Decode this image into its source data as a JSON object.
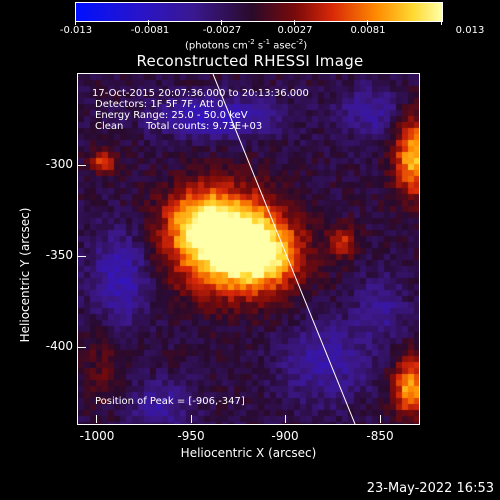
{
  "colorbar": {
    "ticks": [
      "-0.013",
      "-0.0081",
      "-0.0027",
      "0.0027",
      "0.0081",
      "0.013"
    ],
    "units_prefix": "(photons cm",
    "units_exp1": "-2",
    "units_mid": " s",
    "units_exp2": "-1",
    "units_mid2": " asec",
    "units_exp3": "-2",
    "units_suffix": ")"
  },
  "title": "Reconstructed RHESSI Image",
  "info": {
    "time_range": "17-Oct-2015 20:07:36.000 to 20:13:36.000",
    "detectors": "Detectors: 1F 5F 7F, Att 0",
    "energy": "Energy Range: 25.0 - 50.0 keV",
    "clean": "Clean",
    "counts": "Total counts: 9.73E+03",
    "peak": "Position of Peak = [-906,-347]"
  },
  "axes": {
    "xlabel": "Heliocentric X (arcsec)",
    "ylabel": "Heliocentric Y (arcsec)",
    "xticks": [
      "-1000",
      "-950",
      "-900",
      "-850"
    ],
    "yticks": [
      "-300",
      "-350",
      "-400"
    ]
  },
  "footer": "23-May-2022 16:53",
  "chart_data": {
    "type": "heatmap",
    "title": "Reconstructed RHESSI Image",
    "xlabel": "Heliocentric X (arcsec)",
    "ylabel": "Heliocentric Y (arcsec)",
    "xlim": [
      -1010,
      -817
    ],
    "ylim": [
      -445,
      -258
    ],
    "color_range": [
      -0.013,
      0.013
    ],
    "peak": [
      -906,
      -347
    ],
    "colors": {
      "low": "#0010ff",
      "mid": "#2a0a2a",
      "high": "#ffffa8"
    }
  }
}
